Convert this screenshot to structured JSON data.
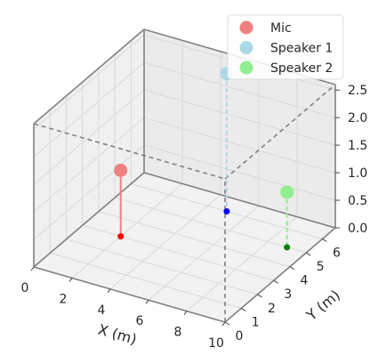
{
  "chart_data": {
    "type": "scatter3d",
    "title": "",
    "xlabel": "X (m)",
    "ylabel": "Y (m)",
    "zlabel": "",
    "xlim": [
      0,
      10
    ],
    "ylim": [
      0,
      6.8
    ],
    "zlim": [
      0,
      2.6
    ],
    "xticks": [
      "0",
      "2",
      "4",
      "6",
      "8",
      "10"
    ],
    "yticks": [
      "0",
      "1",
      "2",
      "3",
      "4",
      "5",
      "6"
    ],
    "zticks": [
      "0.0",
      "0.5",
      "1.0",
      "1.5",
      "2.0",
      "2.5"
    ],
    "grid": true,
    "legend_position": "top-right",
    "room_box": {
      "x": [
        0,
        10
      ],
      "y": [
        0,
        6.8
      ],
      "z": [
        0,
        2.6
      ]
    },
    "series": [
      {
        "name": "Mic",
        "x": 2,
        "y": 3,
        "z": 1.2,
        "color": "#f08080",
        "stem_color": "#ff0000",
        "stem_style": "solid"
      },
      {
        "name": "Speaker 1",
        "x": 5,
        "y": 6,
        "z": 2.5,
        "color": "#add8e6",
        "stem_color": "#0000ff",
        "stem_style": "dashed"
      },
      {
        "name": "Speaker 2",
        "x": 9,
        "y": 5,
        "z": 1.0,
        "color": "#90ee90",
        "stem_color": "#008000",
        "stem_style": "dashed"
      }
    ]
  }
}
